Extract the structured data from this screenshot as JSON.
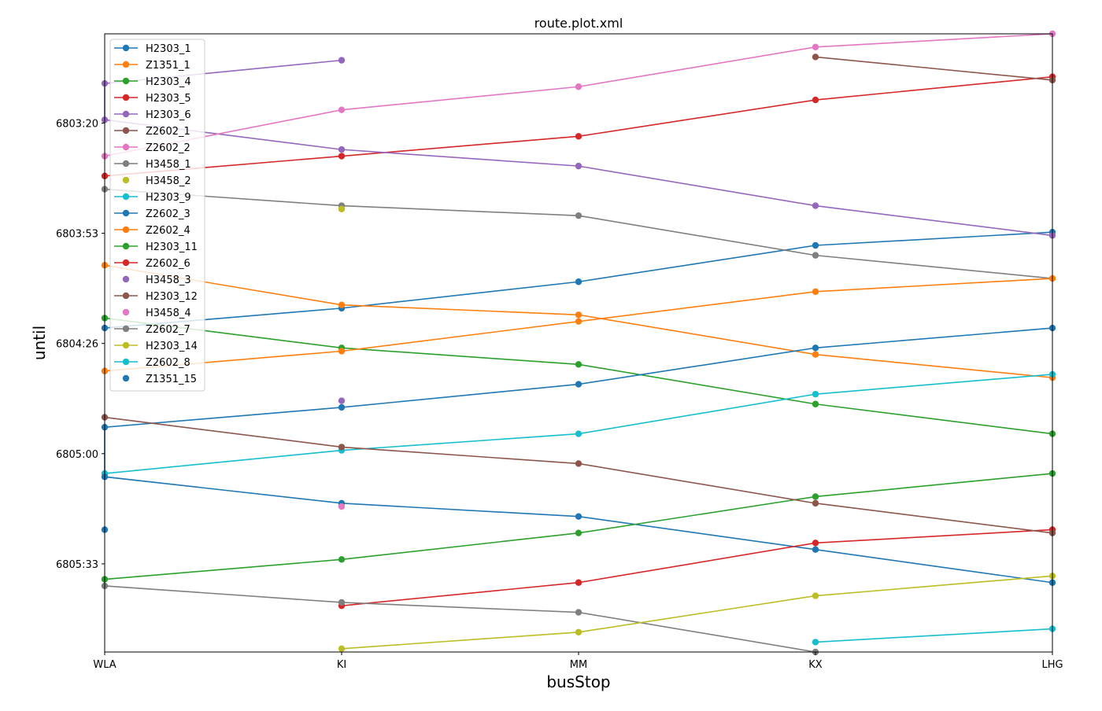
{
  "chart_data": {
    "type": "line",
    "title": "route.plot.xml",
    "xlabel": "busStop",
    "ylabel": "until",
    "categories": [
      "WLA",
      "KI",
      "MM",
      "KX",
      "LHG"
    ],
    "ylim": [
      "6802:53",
      "6806:00"
    ],
    "y_inverted": true,
    "yticks": [
      {
        "label": "6803:20",
        "value": "6803:20"
      },
      {
        "label": "6803:53",
        "value": "6803:53.33"
      },
      {
        "label": "6804:26",
        "value": "6804:26.67"
      },
      {
        "label": "6805:00",
        "value": "6805:00"
      },
      {
        "label": "6805:33",
        "value": "6805:33.33"
      }
    ],
    "grid": false,
    "legend_position": "top-left",
    "series": [
      {
        "name": "H2303_1",
        "color": "#1f77b4",
        "line": true,
        "points": [
          [
            "WLA",
            "6804:22"
          ],
          [
            "KI",
            "6804:16"
          ],
          [
            "MM",
            "6804:08"
          ],
          [
            "KX",
            "6803:57"
          ],
          [
            "LHG",
            "6803:53"
          ]
        ]
      },
      {
        "name": "Z1351_1",
        "color": "#ff7f0e",
        "line": true,
        "points": [
          [
            "WLA",
            "6804:03"
          ],
          [
            "KI",
            "6804:15"
          ],
          [
            "MM",
            "6804:18"
          ],
          [
            "KX",
            "6804:30"
          ],
          [
            "LHG",
            "6804:37"
          ]
        ]
      },
      {
        "name": "H2303_4",
        "color": "#2ca02c",
        "line": true,
        "points": [
          [
            "WLA",
            "6804:19"
          ],
          [
            "KI",
            "6804:28"
          ],
          [
            "MM",
            "6804:33"
          ],
          [
            "KX",
            "6804:45"
          ],
          [
            "LHG",
            "6804:54"
          ]
        ]
      },
      {
        "name": "H2303_5",
        "color": "#d62728",
        "line": true,
        "points": [
          [
            "WLA",
            "6803:36"
          ],
          [
            "KI",
            "6803:30"
          ],
          [
            "MM",
            "6803:24"
          ],
          [
            "KX",
            "6803:13"
          ],
          [
            "LHG",
            "6803:06"
          ]
        ]
      },
      {
        "name": "H2303_6",
        "color": "#9467bd",
        "line": true,
        "points": [
          [
            "KI",
            "6803:01"
          ],
          [
            "WLA",
            "6803:08"
          ],
          [
            "WLA",
            "6803:19"
          ],
          [
            "KI",
            "6803:28"
          ],
          [
            "MM",
            "6803:33"
          ],
          [
            "KX",
            "6803:45"
          ],
          [
            "LHG",
            "6803:54"
          ]
        ]
      },
      {
        "name": "Z2602_1",
        "color": "#8c564b",
        "line": true,
        "points": [
          [
            "KX",
            "6803:00"
          ],
          [
            "LHG",
            "6803:07"
          ]
        ]
      },
      {
        "name": "Z2602_2",
        "color": "#e377c2",
        "line": true,
        "points": [
          [
            "WLA",
            "6803:30"
          ],
          [
            "KI",
            "6803:16"
          ],
          [
            "MM",
            "6803:09"
          ],
          [
            "KX",
            "6802:57"
          ],
          [
            "LHG",
            "6802:53"
          ]
        ]
      },
      {
        "name": "H3458_1",
        "color": "#7f7f7f",
        "line": true,
        "points": [
          [
            "WLA",
            "6803:40"
          ],
          [
            "KI",
            "6803:45"
          ],
          [
            "MM",
            "6803:48"
          ],
          [
            "KX",
            "6804:00"
          ],
          [
            "LHG",
            "6804:07"
          ]
        ]
      },
      {
        "name": "H3458_2",
        "color": "#bcbd22",
        "line": false,
        "points": [
          [
            "KI",
            "6803:46"
          ]
        ]
      },
      {
        "name": "H2303_9",
        "color": "#17becf",
        "line": true,
        "points": [
          [
            "WLA",
            "6805:06"
          ],
          [
            "KI",
            "6804:59"
          ],
          [
            "MM",
            "6804:54"
          ],
          [
            "KX",
            "6804:42"
          ],
          [
            "LHG",
            "6804:36"
          ]
        ]
      },
      {
        "name": "Z2602_3",
        "color": "#1f77b4",
        "line": true,
        "points": [
          [
            "LHG",
            "6804:22"
          ],
          [
            "KX",
            "6804:28"
          ],
          [
            "MM",
            "6804:39"
          ],
          [
            "KI",
            "6804:46"
          ],
          [
            "WLA",
            "6804:52"
          ],
          [
            "WLA",
            "6805:07"
          ],
          [
            "KI",
            "6805:15"
          ],
          [
            "MM",
            "6805:19"
          ],
          [
            "KX",
            "6805:29"
          ],
          [
            "LHG",
            "6805:39"
          ]
        ]
      },
      {
        "name": "Z2602_4",
        "color": "#ff7f0e",
        "line": true,
        "points": [
          [
            "WLA",
            "6804:35"
          ],
          [
            "KI",
            "6804:29"
          ],
          [
            "MM",
            "6804:20"
          ],
          [
            "KX",
            "6804:11"
          ],
          [
            "LHG",
            "6804:07"
          ]
        ]
      },
      {
        "name": "H2303_11",
        "color": "#2ca02c",
        "line": true,
        "points": [
          [
            "WLA",
            "6805:38"
          ],
          [
            "KI",
            "6805:32"
          ],
          [
            "MM",
            "6805:24"
          ],
          [
            "KX",
            "6805:13"
          ],
          [
            "LHG",
            "6805:06"
          ]
        ]
      },
      {
        "name": "Z2602_6",
        "color": "#d62728",
        "line": true,
        "points": [
          [
            "KI",
            "6805:46"
          ],
          [
            "MM",
            "6805:39"
          ],
          [
            "KX",
            "6805:27"
          ],
          [
            "LHG",
            "6805:23"
          ]
        ]
      },
      {
        "name": "H3458_3",
        "color": "#9467bd",
        "line": false,
        "points": [
          [
            "KI",
            "6804:44"
          ]
        ]
      },
      {
        "name": "H2303_12",
        "color": "#8c564b",
        "line": true,
        "points": [
          [
            "WLA",
            "6804:49"
          ],
          [
            "KI",
            "6804:58"
          ],
          [
            "MM",
            "6805:03"
          ],
          [
            "KX",
            "6805:15"
          ],
          [
            "LHG",
            "6805:24"
          ]
        ]
      },
      {
        "name": "H3458_4",
        "color": "#e377c2",
        "line": false,
        "points": [
          [
            "KI",
            "6805:16"
          ]
        ]
      },
      {
        "name": "Z2602_7",
        "color": "#7f7f7f",
        "line": true,
        "points": [
          [
            "WLA",
            "6805:40"
          ],
          [
            "KI",
            "6805:45"
          ],
          [
            "MM",
            "6805:48"
          ],
          [
            "KX",
            "6806:00"
          ]
        ]
      },
      {
        "name": "H2303_14",
        "color": "#bcbd22",
        "line": true,
        "points": [
          [
            "KI",
            "6805:59"
          ],
          [
            "MM",
            "6805:54"
          ],
          [
            "KX",
            "6805:43"
          ],
          [
            "LHG",
            "6805:37"
          ]
        ]
      },
      {
        "name": "Z2602_8",
        "color": "#17becf",
        "line": true,
        "points": [
          [
            "KX",
            "6805:57"
          ],
          [
            "LHG",
            "6805:53"
          ]
        ]
      },
      {
        "name": "Z1351_15",
        "color": "#1f77b4",
        "line": false,
        "points": [
          [
            "WLA",
            "6805:23"
          ]
        ]
      }
    ]
  }
}
